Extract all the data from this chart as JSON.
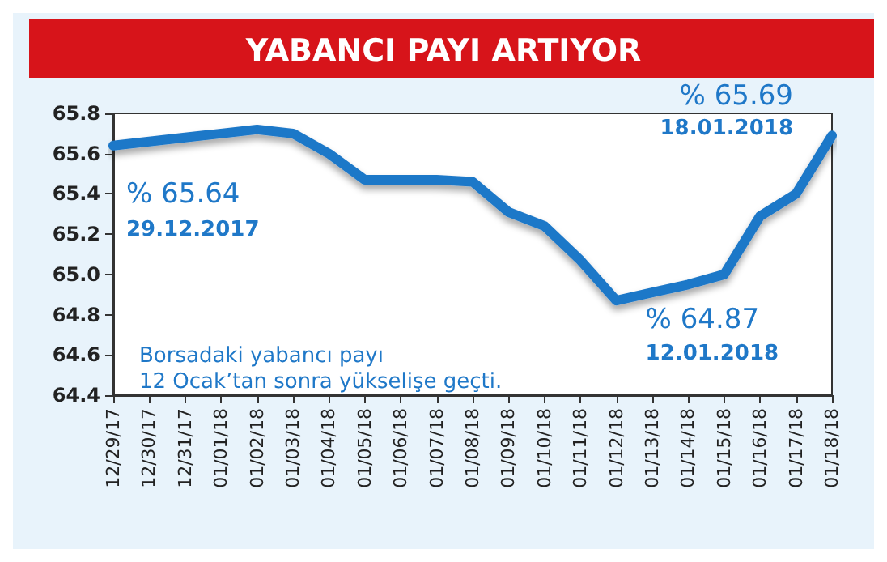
{
  "chart_data": {
    "type": "line",
    "title": "YABANCI PAYI ARTIYOR",
    "categories": [
      "12/29/17",
      "12/30/17",
      "12/31/17",
      "01/01/18",
      "01/02/18",
      "01/03/18",
      "01/04/18",
      "01/05/18",
      "01/06/18",
      "01/07/18",
      "01/08/18",
      "01/09/18",
      "01/10/18",
      "01/11/18",
      "01/12/18",
      "01/13/18",
      "01/14/18",
      "01/15/18",
      "01/16/18",
      "01/17/18",
      "01/18/18"
    ],
    "series": [
      {
        "color": "#1f78c8",
        "values": [
          65.64,
          65.66,
          65.68,
          65.7,
          65.72,
          65.7,
          65.6,
          65.47,
          65.47,
          65.47,
          65.46,
          65.31,
          65.24,
          65.07,
          64.87,
          64.91,
          64.95,
          65.0,
          65.29,
          65.4,
          65.69
        ]
      }
    ],
    "ylim": [
      64.4,
      65.8
    ],
    "yticks": [
      64.4,
      64.6,
      64.8,
      {
        "value": 65,
        "label": "65.0"
      },
      65.2,
      65.4,
      65.6,
      65.8
    ],
    "grid": false,
    "marker": "none",
    "line_style": "solid",
    "annotations": [
      {
        "text": "% 65.64",
        "x": "12/29/17",
        "y": 65.64
      },
      "29.12.2017",
      {
        "text": "% 65.69",
        "x": "01/18/18",
        "y": 65.69
      },
      "18.01.2018",
      {
        "text": "% 64.87",
        "x": "01/12/18",
        "y": 64.87
      },
      "12.01.2018",
      "Borsadaki yabancı payı\n12 Ocak’tan sonra yükselişe geçti."
    ]
  }
}
